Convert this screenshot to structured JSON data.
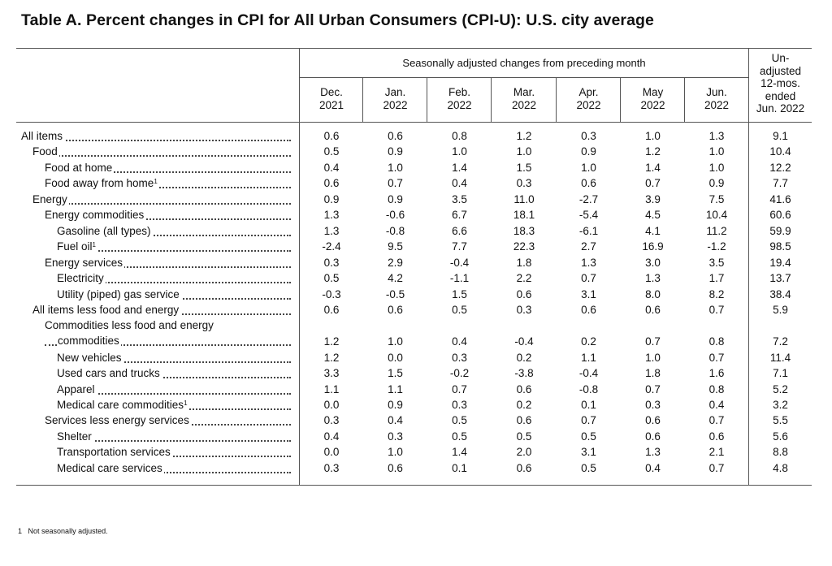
{
  "title": "Table A. Percent changes in CPI for All Urban Consumers (CPI-U): U.S. city average",
  "super_header": "Seasonally adjusted changes from preceding month",
  "columns": [
    {
      "l1": "Dec.",
      "l2": "2021"
    },
    {
      "l1": "Jan.",
      "l2": "2022"
    },
    {
      "l1": "Feb.",
      "l2": "2022"
    },
    {
      "l1": "Mar.",
      "l2": "2022"
    },
    {
      "l1": "Apr.",
      "l2": "2022"
    },
    {
      "l1": "May",
      "l2": "2022"
    },
    {
      "l1": "Jun.",
      "l2": "2022"
    }
  ],
  "unadjusted_header": [
    "Un-",
    "adjusted",
    "12-mos.",
    "ended",
    "Jun. 2022"
  ],
  "rows": [
    {
      "label": "All items",
      "indent": 0,
      "values": [
        "0.6",
        "0.6",
        "0.8",
        "1.2",
        "0.3",
        "1.0",
        "1.3",
        "9.1"
      ]
    },
    {
      "label": "Food",
      "indent": 1,
      "values": [
        "0.5",
        "0.9",
        "1.0",
        "1.0",
        "0.9",
        "1.2",
        "1.0",
        "10.4"
      ]
    },
    {
      "label": "Food at home",
      "indent": 2,
      "values": [
        "0.4",
        "1.0",
        "1.4",
        "1.5",
        "1.0",
        "1.4",
        "1.0",
        "12.2"
      ]
    },
    {
      "label": "Food away from home",
      "sup": "1",
      "indent": 2,
      "values": [
        "0.6",
        "0.7",
        "0.4",
        "0.3",
        "0.6",
        "0.7",
        "0.9",
        "7.7"
      ]
    },
    {
      "label": "Energy",
      "indent": 1,
      "values": [
        "0.9",
        "0.9",
        "3.5",
        "11.0",
        "-2.7",
        "3.9",
        "7.5",
        "41.6"
      ]
    },
    {
      "label": "Energy commodities",
      "indent": 2,
      "values": [
        "1.3",
        "-0.6",
        "6.7",
        "18.1",
        "-5.4",
        "4.5",
        "10.4",
        "60.6"
      ]
    },
    {
      "label": "Gasoline (all types)",
      "indent": 3,
      "values": [
        "1.3",
        "-0.8",
        "6.6",
        "18.3",
        "-6.1",
        "4.1",
        "11.2",
        "59.9"
      ]
    },
    {
      "label": "Fuel oil",
      "sup": "1",
      "indent": 3,
      "values": [
        "-2.4",
        "9.5",
        "7.7",
        "22.3",
        "2.7",
        "16.9",
        "-1.2",
        "98.5"
      ]
    },
    {
      "label": "Energy services",
      "indent": 2,
      "values": [
        "0.3",
        "2.9",
        "-0.4",
        "1.8",
        "1.3",
        "3.0",
        "3.5",
        "19.4"
      ]
    },
    {
      "label": "Electricity",
      "indent": 3,
      "values": [
        "0.5",
        "4.2",
        "-1.1",
        "2.2",
        "0.7",
        "1.3",
        "1.7",
        "13.7"
      ]
    },
    {
      "label": "Utility (piped) gas service",
      "indent": 3,
      "values": [
        "-0.3",
        "-0.5",
        "1.5",
        "0.6",
        "3.1",
        "8.0",
        "8.2",
        "38.4"
      ]
    },
    {
      "label": "All items less food and energy",
      "indent": 1,
      "values": [
        "0.6",
        "0.6",
        "0.5",
        "0.3",
        "0.6",
        "0.6",
        "0.7",
        "5.9"
      ]
    },
    {
      "label": "Commodities less food and energy",
      "label2": "commodities",
      "indent": 2,
      "values": [
        "1.2",
        "1.0",
        "0.4",
        "-0.4",
        "0.2",
        "0.7",
        "0.8",
        "7.2"
      ]
    },
    {
      "label": "New vehicles",
      "indent": 3,
      "values": [
        "1.2",
        "0.0",
        "0.3",
        "0.2",
        "1.1",
        "1.0",
        "0.7",
        "11.4"
      ]
    },
    {
      "label": "Used cars and trucks",
      "indent": 3,
      "values": [
        "3.3",
        "1.5",
        "-0.2",
        "-3.8",
        "-0.4",
        "1.8",
        "1.6",
        "7.1"
      ]
    },
    {
      "label": "Apparel",
      "indent": 3,
      "values": [
        "1.1",
        "1.1",
        "0.7",
        "0.6",
        "-0.8",
        "0.7",
        "0.8",
        "5.2"
      ]
    },
    {
      "label": "Medical care commodities",
      "sup": "1",
      "indent": 3,
      "values": [
        "0.0",
        "0.9",
        "0.3",
        "0.2",
        "0.1",
        "0.3",
        "0.4",
        "3.2"
      ]
    },
    {
      "label": "Services less energy services",
      "indent": 2,
      "values": [
        "0.3",
        "0.4",
        "0.5",
        "0.6",
        "0.7",
        "0.6",
        "0.7",
        "5.5"
      ]
    },
    {
      "label": "Shelter",
      "indent": 3,
      "values": [
        "0.4",
        "0.3",
        "0.5",
        "0.5",
        "0.5",
        "0.6",
        "0.6",
        "5.6"
      ]
    },
    {
      "label": "Transportation services",
      "indent": 3,
      "values": [
        "0.0",
        "1.0",
        "1.4",
        "2.0",
        "3.1",
        "1.3",
        "2.1",
        "8.8"
      ]
    },
    {
      "label": "Medical care services",
      "indent": 3,
      "values": [
        "0.3",
        "0.6",
        "0.1",
        "0.6",
        "0.5",
        "0.4",
        "0.7",
        "4.8"
      ]
    }
  ],
  "footnote": {
    "mark": "1",
    "text": "Not seasonally adjusted."
  }
}
